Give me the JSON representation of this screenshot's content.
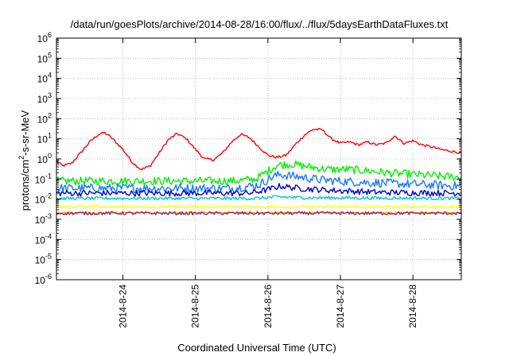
{
  "chart_data": {
    "type": "line",
    "title": "/data/run/goesPlots/archive/2014-08-28/16:00/flux/../flux/5daysEarthDataFluxes.txt",
    "xlabel": "Coordinated Universal Time (UTC)",
    "ylabel": {
      "base": "protons/cm",
      "sup": "2",
      "rest": "-s-sr-MeV"
    },
    "y_scale": "log",
    "ylim_exponents": [
      -6,
      6
    ],
    "y_tick_base": "10",
    "y_tick_exponents": [
      "6",
      "5",
      "4",
      "3",
      "2",
      "1",
      "0",
      "-1",
      "-2",
      "-3",
      "-4",
      "-5",
      "-6"
    ],
    "xlim": [
      "2014-08-23 02:00",
      "2014-08-28 16:00"
    ],
    "x_ticks": [
      "2014-8-24",
      "2014-8-25",
      "2014-8-26",
      "2014-8-27",
      "2014-8-28"
    ],
    "grid": true,
    "colors": {
      "red": "#ff0000",
      "green": "#00ee00",
      "light_blue": "#1a78ff",
      "dark_blue": "#0000cc",
      "cyan": "#00c8c8",
      "yellow": "#ffff00",
      "orange": "#ffa500",
      "purple": "#8b2c6e"
    },
    "series": [
      {
        "color_key": "red",
        "noise": 0.06,
        "points": [
          [
            "2014-08-23 02:00",
            0.8
          ],
          [
            "2014-08-23 04:00",
            0.45
          ],
          [
            "2014-08-23 07:00",
            0.6
          ],
          [
            "2014-08-23 10:00",
            2.0
          ],
          [
            "2014-08-23 13:00",
            7.0
          ],
          [
            "2014-08-23 16:00",
            17.0
          ],
          [
            "2014-08-23 18:00",
            20.0
          ],
          [
            "2014-08-23 20:00",
            12.0
          ],
          [
            "2014-08-24 00:00",
            3.0
          ],
          [
            "2014-08-24 03:00",
            0.7
          ],
          [
            "2014-08-24 06:00",
            0.3
          ],
          [
            "2014-08-24 09:00",
            0.45
          ],
          [
            "2014-08-24 12:00",
            2.0
          ],
          [
            "2014-08-24 15:00",
            9.0
          ],
          [
            "2014-08-24 18:00",
            18.0
          ],
          [
            "2014-08-24 21:00",
            10.0
          ],
          [
            "2014-08-25 00:00",
            3.0
          ],
          [
            "2014-08-25 03:00",
            1.0
          ],
          [
            "2014-08-25 06:00",
            0.9
          ],
          [
            "2014-08-25 09:00",
            2.0
          ],
          [
            "2014-08-25 12:00",
            7.0
          ],
          [
            "2014-08-25 15:00",
            17.0
          ],
          [
            "2014-08-25 18:00",
            11.0
          ],
          [
            "2014-08-25 21:00",
            4.0
          ],
          [
            "2014-08-26 00:00",
            1.5
          ],
          [
            "2014-08-26 03:00",
            1.2
          ],
          [
            "2014-08-26 06:00",
            1.5
          ],
          [
            "2014-08-26 09:00",
            5.0
          ],
          [
            "2014-08-26 12:00",
            15.0
          ],
          [
            "2014-08-26 15:00",
            30.0
          ],
          [
            "2014-08-26 18:00",
            28.0
          ],
          [
            "2014-08-26 21:00",
            10.0
          ],
          [
            "2014-08-27 00:00",
            6.0
          ],
          [
            "2014-08-27 03:00",
            7.0
          ],
          [
            "2014-08-27 06:00",
            5.0
          ],
          [
            "2014-08-27 09:00",
            7.0
          ],
          [
            "2014-08-27 12:00",
            5.0
          ],
          [
            "2014-08-27 15:00",
            6.0
          ],
          [
            "2014-08-27 18:00",
            14.0
          ],
          [
            "2014-08-27 21:00",
            6.0
          ],
          [
            "2014-08-28 00:00",
            8.0
          ],
          [
            "2014-08-28 03:00",
            5.0
          ],
          [
            "2014-08-28 06:00",
            4.0
          ],
          [
            "2014-08-28 09:00",
            3.0
          ],
          [
            "2014-08-28 12:00",
            2.5
          ],
          [
            "2014-08-28 16:00",
            2.0
          ]
        ]
      },
      {
        "color_key": "green",
        "noise": 0.2,
        "points": [
          [
            "2014-08-23 02:00",
            0.08
          ],
          [
            "2014-08-25 12:00",
            0.08
          ],
          [
            "2014-08-25 20:00",
            0.1
          ],
          [
            "2014-08-26 00:00",
            0.25
          ],
          [
            "2014-08-26 03:00",
            0.5
          ],
          [
            "2014-08-26 08:00",
            0.55
          ],
          [
            "2014-08-26 14:00",
            0.4
          ],
          [
            "2014-08-26 20:00",
            0.3
          ],
          [
            "2014-08-27 03:00",
            0.3
          ],
          [
            "2014-08-27 10:00",
            0.25
          ],
          [
            "2014-08-27 16:00",
            0.2
          ],
          [
            "2014-08-28 06:00",
            0.15
          ],
          [
            "2014-08-28 16:00",
            0.12
          ]
        ]
      },
      {
        "color_key": "light_blue",
        "noise": 0.22,
        "points": [
          [
            "2014-08-23 02:00",
            0.035
          ],
          [
            "2014-08-25 12:00",
            0.035
          ],
          [
            "2014-08-25 21:00",
            0.05
          ],
          [
            "2014-08-26 01:00",
            0.12
          ],
          [
            "2014-08-26 04:00",
            0.17
          ],
          [
            "2014-08-26 10:00",
            0.13
          ],
          [
            "2014-08-26 18:00",
            0.09
          ],
          [
            "2014-08-27 06:00",
            0.07
          ],
          [
            "2014-08-27 18:00",
            0.06
          ],
          [
            "2014-08-28 16:00",
            0.045
          ]
        ]
      },
      {
        "color_key": "dark_blue",
        "noise": 0.15,
        "points": [
          [
            "2014-08-23 02:00",
            0.02
          ],
          [
            "2014-08-25 18:00",
            0.02
          ],
          [
            "2014-08-26 00:00",
            0.03
          ],
          [
            "2014-08-26 04:00",
            0.045
          ],
          [
            "2014-08-26 10:00",
            0.035
          ],
          [
            "2014-08-26 20:00",
            0.028
          ],
          [
            "2014-08-27 12:00",
            0.022
          ],
          [
            "2014-08-28 16:00",
            0.02
          ]
        ]
      },
      {
        "color_key": "cyan",
        "noise": 0.08,
        "points": [
          [
            "2014-08-23 02:00",
            0.011
          ],
          [
            "2014-08-25 20:00",
            0.011
          ],
          [
            "2014-08-26 03:00",
            0.013
          ],
          [
            "2014-08-26 12:00",
            0.012
          ],
          [
            "2014-08-28 16:00",
            0.011
          ]
        ]
      },
      {
        "color_key": "yellow",
        "noise": 0.05,
        "points": [
          [
            "2014-08-23 02:00",
            0.0042
          ],
          [
            "2014-08-28 16:00",
            0.0042
          ]
        ]
      },
      {
        "color_key": "orange",
        "noise": 0.03,
        "points": [
          [
            "2014-08-23 02:00",
            0.0021
          ],
          [
            "2014-08-28 16:00",
            0.0021
          ]
        ]
      },
      {
        "color_key": "purple",
        "noise": 0.08,
        "points": [
          [
            "2014-08-23 02:00",
            0.002
          ],
          [
            "2014-08-28 16:00",
            0.002
          ]
        ]
      }
    ]
  }
}
